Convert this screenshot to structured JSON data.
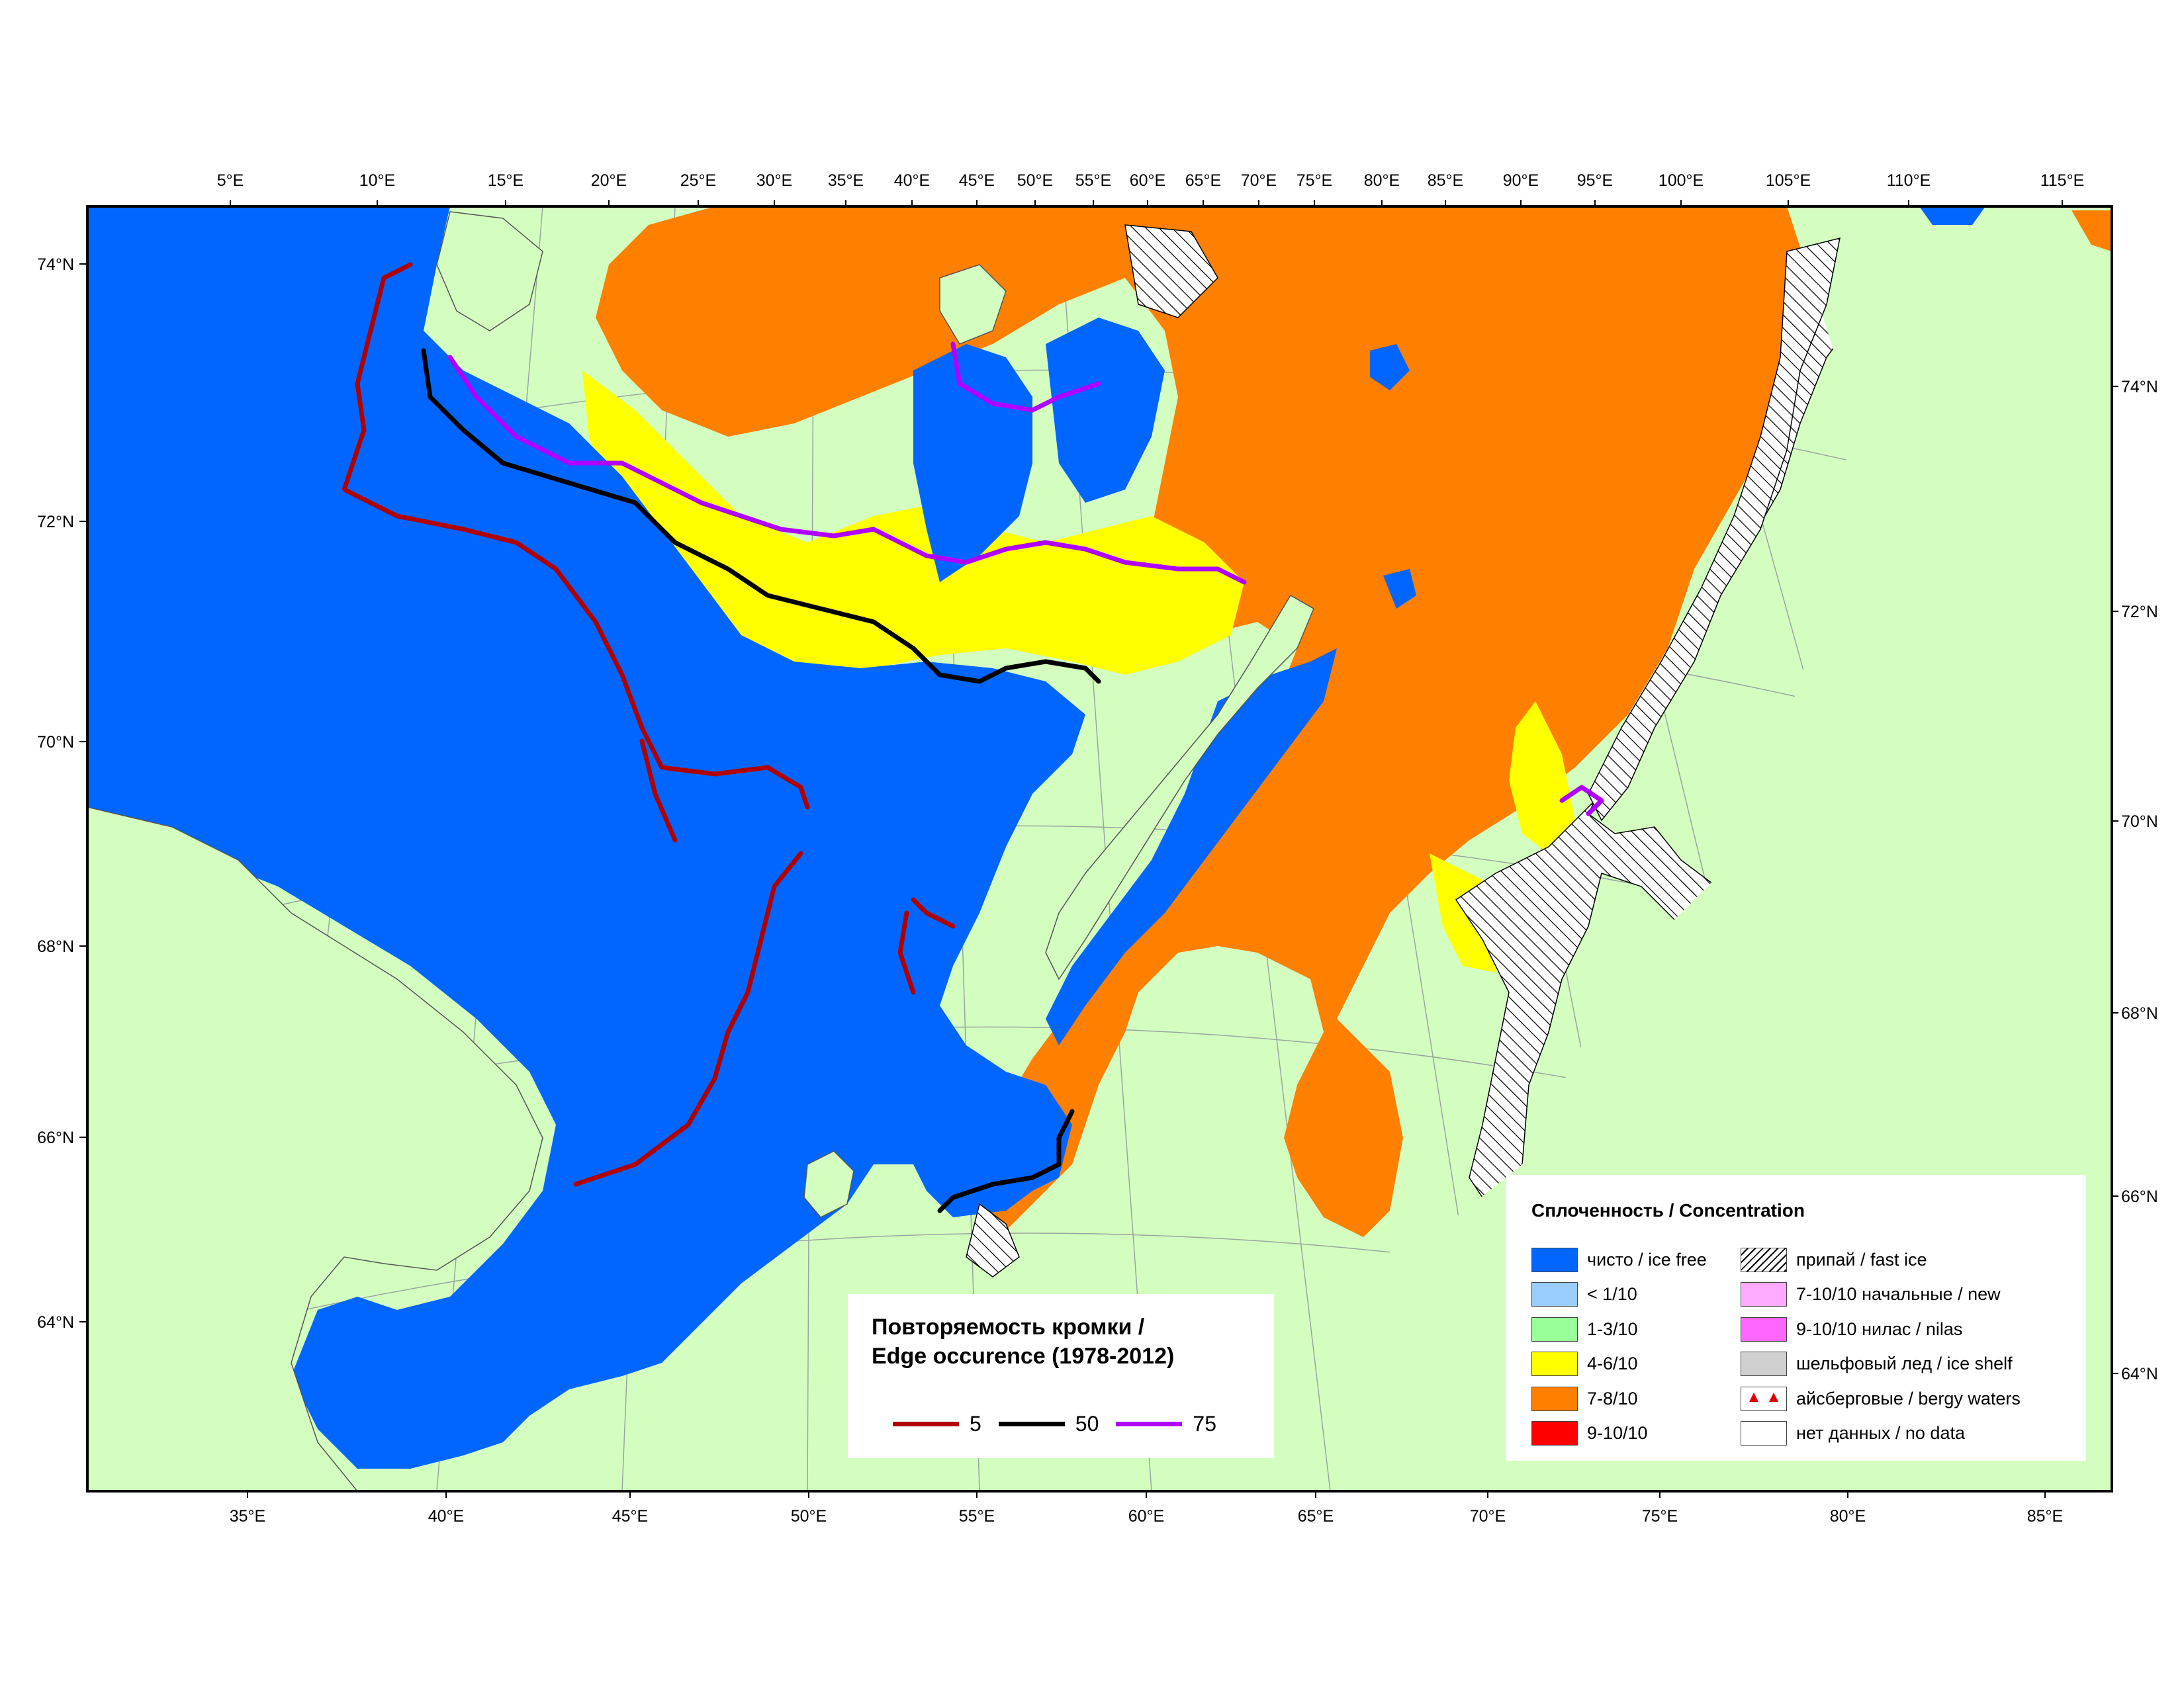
{
  "top_lon_labels": [
    "5°E",
    "10°E",
    "15°E",
    "20°E",
    "25°E",
    "30°E",
    "35°E",
    "40°E",
    "45°E",
    "50°E",
    "55°E",
    "60°E",
    "65°E",
    "70°E",
    "75°E",
    "80°E",
    "85°E",
    "90°E",
    "95°E",
    "100°E",
    "105°E",
    "110°E",
    "115°E"
  ],
  "bottom_lon_labels": [
    "35°E",
    "40°E",
    "45°E",
    "50°E",
    "55°E",
    "60°E",
    "65°E",
    "70°E",
    "75°E",
    "80°E",
    "85°E"
  ],
  "left_lat_labels": [
    "74°N",
    "72°N",
    "70°N",
    "68°N",
    "66°N",
    "64°N"
  ],
  "right_lat_labels": [
    "74°N",
    "72°N",
    "70°N",
    "68°N",
    "66°N",
    "64°N"
  ],
  "colors": {
    "land": "#d3fec0",
    "ice_free": "#0066ff",
    "lt_1_10": "#99ccff",
    "c1_3": "#99ff99",
    "c4_6": "#ffff00",
    "c7_8": "#ff7f00",
    "c9_10": "#ff0000",
    "new_ice": "#ffaaff",
    "nilas": "#ff66ff",
    "ice_shelf": "#d0d0d0",
    "no_data": "#ffffff",
    "edge_5": "#b00000",
    "edge_50": "#000000",
    "edge_75": "#b000ff"
  },
  "edge_legend": {
    "title_line1": "Повторяемость кромки /",
    "title_line2": "Edge occurence (1978-2012)",
    "items": [
      {
        "label": "5",
        "color": "#b00000"
      },
      {
        "label": "50",
        "color": "#000000"
      },
      {
        "label": "75",
        "color": "#b000ff"
      }
    ]
  },
  "concentration_legend": {
    "title": "Сплоченность / Concentration",
    "left": [
      {
        "label": "чисто / ice free",
        "color": "#0066ff"
      },
      {
        "label": "< 1/10",
        "color": "#99ccff"
      },
      {
        "label": "1-3/10",
        "color": "#99ff99"
      },
      {
        "label": "4-6/10",
        "color": "#ffff00"
      },
      {
        "label": "7-8/10",
        "color": "#ff7f00"
      },
      {
        "label": "9-10/10",
        "color": "#ff0000"
      }
    ],
    "right": [
      {
        "label": "припай / fast ice",
        "pattern": "hatch"
      },
      {
        "label": "7-10/10 начальные / new",
        "color": "#ffaaff"
      },
      {
        "label": "9-10/10 нилас / nilas",
        "color": "#ff66ff"
      },
      {
        "label": "шельфовый лед / ice shelf",
        "color": "#d0d0d0"
      },
      {
        "label": "айсберговые / bergy waters",
        "pattern": "berg"
      },
      {
        "label": "нет данных / no data",
        "color": "#ffffff"
      }
    ]
  }
}
